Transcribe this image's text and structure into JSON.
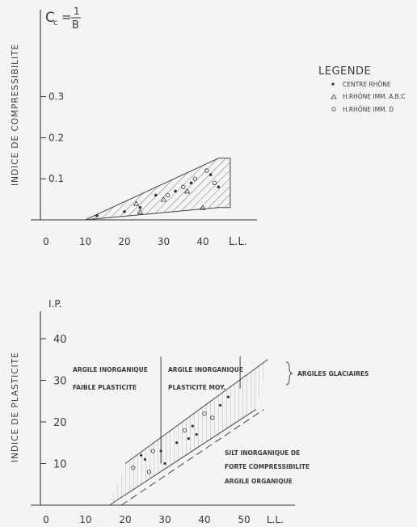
{
  "chart_data": [
    {
      "type": "scatter",
      "title": "",
      "ylabel": "INDICE DE COMPRESSIBILITE",
      "xlabel": "L.L.",
      "y_symbol": "Cc = 1/B",
      "x_ticks": [
        "0",
        "10",
        "20",
        "30",
        "40"
      ],
      "y_ticks": [
        "0.1",
        "0.2",
        "0.3"
      ],
      "xlim": [
        0,
        50
      ],
      "ylim": [
        0,
        0.45
      ],
      "hatched_zone": {
        "x": [
          10,
          44,
          47
        ],
        "y_low": [
          0.0,
          0.03,
          0.03
        ],
        "y_high": [
          0.0,
          0.15,
          0.15
        ]
      },
      "series": [
        {
          "name": "CENTRE RHÔNE",
          "marker": "dot",
          "points": [
            [
              13,
              0.01
            ],
            [
              20,
              0.02
            ],
            [
              24,
              0.03
            ],
            [
              28,
              0.06
            ],
            [
              33,
              0.07
            ],
            [
              37,
              0.09
            ],
            [
              42,
              0.11
            ],
            [
              44,
              0.08
            ]
          ]
        },
        {
          "name": "H.RHÔNE IMM. A.B.C",
          "marker": "triangle",
          "points": [
            [
              23,
              0.04
            ],
            [
              24,
              0.02
            ],
            [
              30,
              0.05
            ],
            [
              36,
              0.07
            ],
            [
              40,
              0.03
            ]
          ]
        },
        {
          "name": "H.RHÔNE IMM. D",
          "marker": "circle",
          "points": [
            [
              31,
              0.06
            ],
            [
              35,
              0.08
            ],
            [
              38,
              0.1
            ],
            [
              41,
              0.12
            ],
            [
              43,
              0.09
            ]
          ]
        }
      ]
    },
    {
      "type": "scatter",
      "title": "",
      "ylabel": "INDICE DE PLASTICITE",
      "y_symbol": "I.P.",
      "xlabel": "L.L.",
      "x_ticks": [
        "0",
        "10",
        "20",
        "30",
        "40",
        "50"
      ],
      "y_ticks": [
        "10",
        "20",
        "30",
        "40"
      ],
      "xlim": [
        0,
        60
      ],
      "ylim": [
        0,
        50
      ],
      "upper_line": [
        [
          20,
          10
        ],
        [
          56,
          35
        ]
      ],
      "lower_line": [
        [
          16,
          0
        ],
        [
          53,
          23
        ]
      ],
      "dashed_line": [
        [
          19,
          0
        ],
        [
          55,
          23
        ]
      ],
      "vertical_dividers": [
        29,
        49
      ],
      "points": [
        [
          22,
          9
        ],
        [
          24,
          12
        ],
        [
          25,
          11
        ],
        [
          27,
          13
        ],
        [
          29,
          13
        ],
        [
          33,
          15
        ],
        [
          35,
          18
        ],
        [
          37,
          19
        ],
        [
          38,
          17
        ],
        [
          40,
          22
        ],
        [
          44,
          24
        ],
        [
          46,
          26
        ],
        [
          26,
          8
        ],
        [
          30,
          10
        ],
        [
          36,
          16
        ],
        [
          42,
          21
        ]
      ]
    }
  ],
  "legend": {
    "title": "LEGENDE",
    "items": [
      "CENTRE RHÔNE",
      "H.RHÔNE IMM. A.B.C",
      "H.RHÔNE IMM. D"
    ]
  },
  "top": {
    "cc_label": "C",
    "cc_sub": "c",
    "cc_num": "1",
    "cc_den": "B",
    "y_title": "INDICE DE COMPRESSIBILITE",
    "x_label": "L.L."
  },
  "bottom": {
    "ip_label": "I.P.",
    "y_title": "INDICE DE PLASTICITE",
    "x_label": "L.L.",
    "zone1_l1": "ARGILE INORGANIQUE",
    "zone1_l2": "FAIBLE PLASTICITE",
    "zone2_l1": "ARGILE INORGANIQUE",
    "zone2_l2": "PLASTICITE MOY.",
    "glaciaires": "ARGILES GLACIAIRES",
    "silt_l1": "SILT INORGANIQUE DE",
    "silt_l2": "FORTE COMPRESSIBILITE",
    "silt_l3": "ARGILE ORGANIQUE"
  }
}
